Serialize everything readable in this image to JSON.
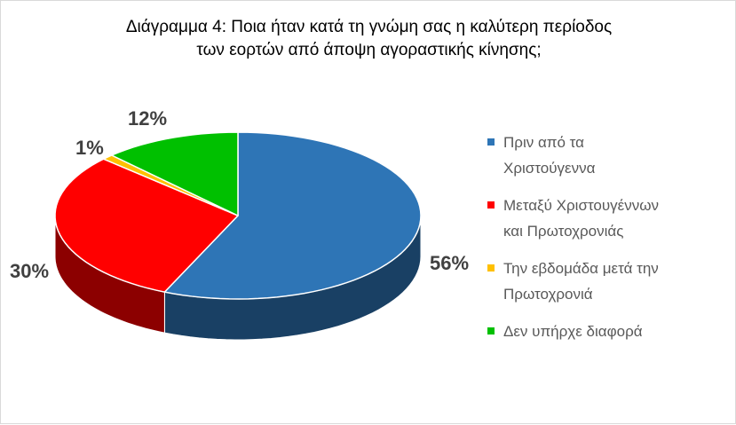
{
  "chart_data": {
    "type": "pie",
    "title_line1": "Διάγραμμα 4: Ποια ήταν κατά τη γνώμη σας η καλύτερη περίοδος",
    "title_line2": "των εορτών από άποψη αγοραστικής κίνησης;",
    "slices": [
      {
        "label": "Πριν από τα Χριστούγεννα",
        "legend_line1": "Πριν από τα",
        "legend_line2": "Χριστούγεννα",
        "value": 56,
        "value_label": "56%",
        "color": "#2e75b6"
      },
      {
        "label": "Μεταξύ Χριστουγέννων και Πρωτοχρονιάς",
        "legend_line1": "Μεταξύ Χριστουγέννων",
        "legend_line2": "και Πρωτοχρονιάς",
        "value": 30,
        "value_label": "30%",
        "color": "#ff0000"
      },
      {
        "label": "Την εβδομάδα μετά την Πρωτοχρονιά",
        "legend_line1": "Την εβδομάδα μετά την",
        "legend_line2": "Πρωτοχρονιά",
        "value": 1,
        "value_label": "1%",
        "color": "#ffc000"
      },
      {
        "label": "Δεν υπήρχε διαφορά",
        "legend_line1": "Δεν υπήρχε διαφορά",
        "legend_line2": "",
        "value": 12,
        "value_label": "12%",
        "color": "#00c000"
      }
    ],
    "style": "3d-pie",
    "legend_position": "right"
  }
}
